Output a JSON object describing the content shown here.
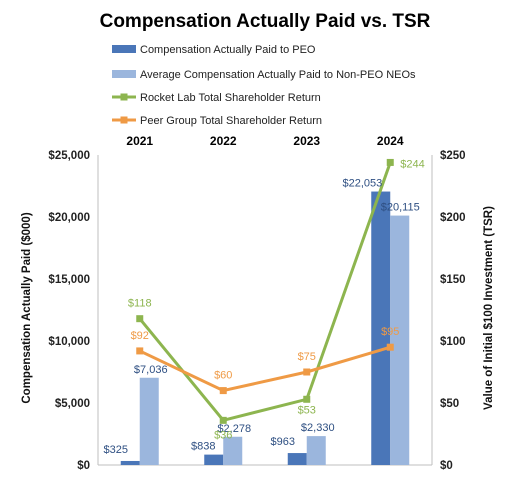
{
  "chart_data": {
    "type": "bar",
    "title": "Compensation Actually Paid vs. TSR",
    "categories": [
      "2021",
      "2022",
      "2023",
      "2024"
    ],
    "ylabel": "Compensation  Actually Paid ($000)",
    "y2label": "Value of Initial $100 Investment (TSR)",
    "ylim": [
      0,
      25000
    ],
    "y2lim": [
      0,
      250
    ],
    "yticks": [
      "$0",
      "$5,000",
      "$10,000",
      "$15,000",
      "$20,000",
      "$25,000"
    ],
    "y2ticks": [
      "$0",
      "$50",
      "$100",
      "$150",
      "$200",
      "$250"
    ],
    "legend_position": "top",
    "grid": false,
    "series": [
      {
        "name": "Compensation Actually Paid to PEO",
        "type": "bar",
        "axis": "left",
        "color": "#4a76b8",
        "values": [
          325,
          838,
          963,
          22053
        ],
        "labels": [
          "$325",
          "$838",
          "$963",
          "$22,053"
        ]
      },
      {
        "name": "Average Compensation Actually Paid to Non-PEO NEOs",
        "type": "bar",
        "axis": "left",
        "color": "#9bb6dd",
        "values": [
          7036,
          2278,
          2330,
          20115
        ],
        "labels": [
          "$7,036",
          "$2,278",
          "$2,330",
          "$20,115"
        ]
      },
      {
        "name": "Rocket Lab Total Shareholder Return",
        "type": "line",
        "axis": "right",
        "color": "#8db54f",
        "values": [
          118,
          36,
          53,
          244
        ],
        "labels": [
          "$118",
          "$36",
          "$53",
          "$244"
        ]
      },
      {
        "name": "Peer Group Total Shareholder Return",
        "type": "line",
        "axis": "right",
        "color": "#ef9a45",
        "values": [
          92,
          60,
          75,
          95
        ],
        "labels": [
          "$92",
          "$60",
          "$75",
          "$95"
        ]
      }
    ]
  }
}
